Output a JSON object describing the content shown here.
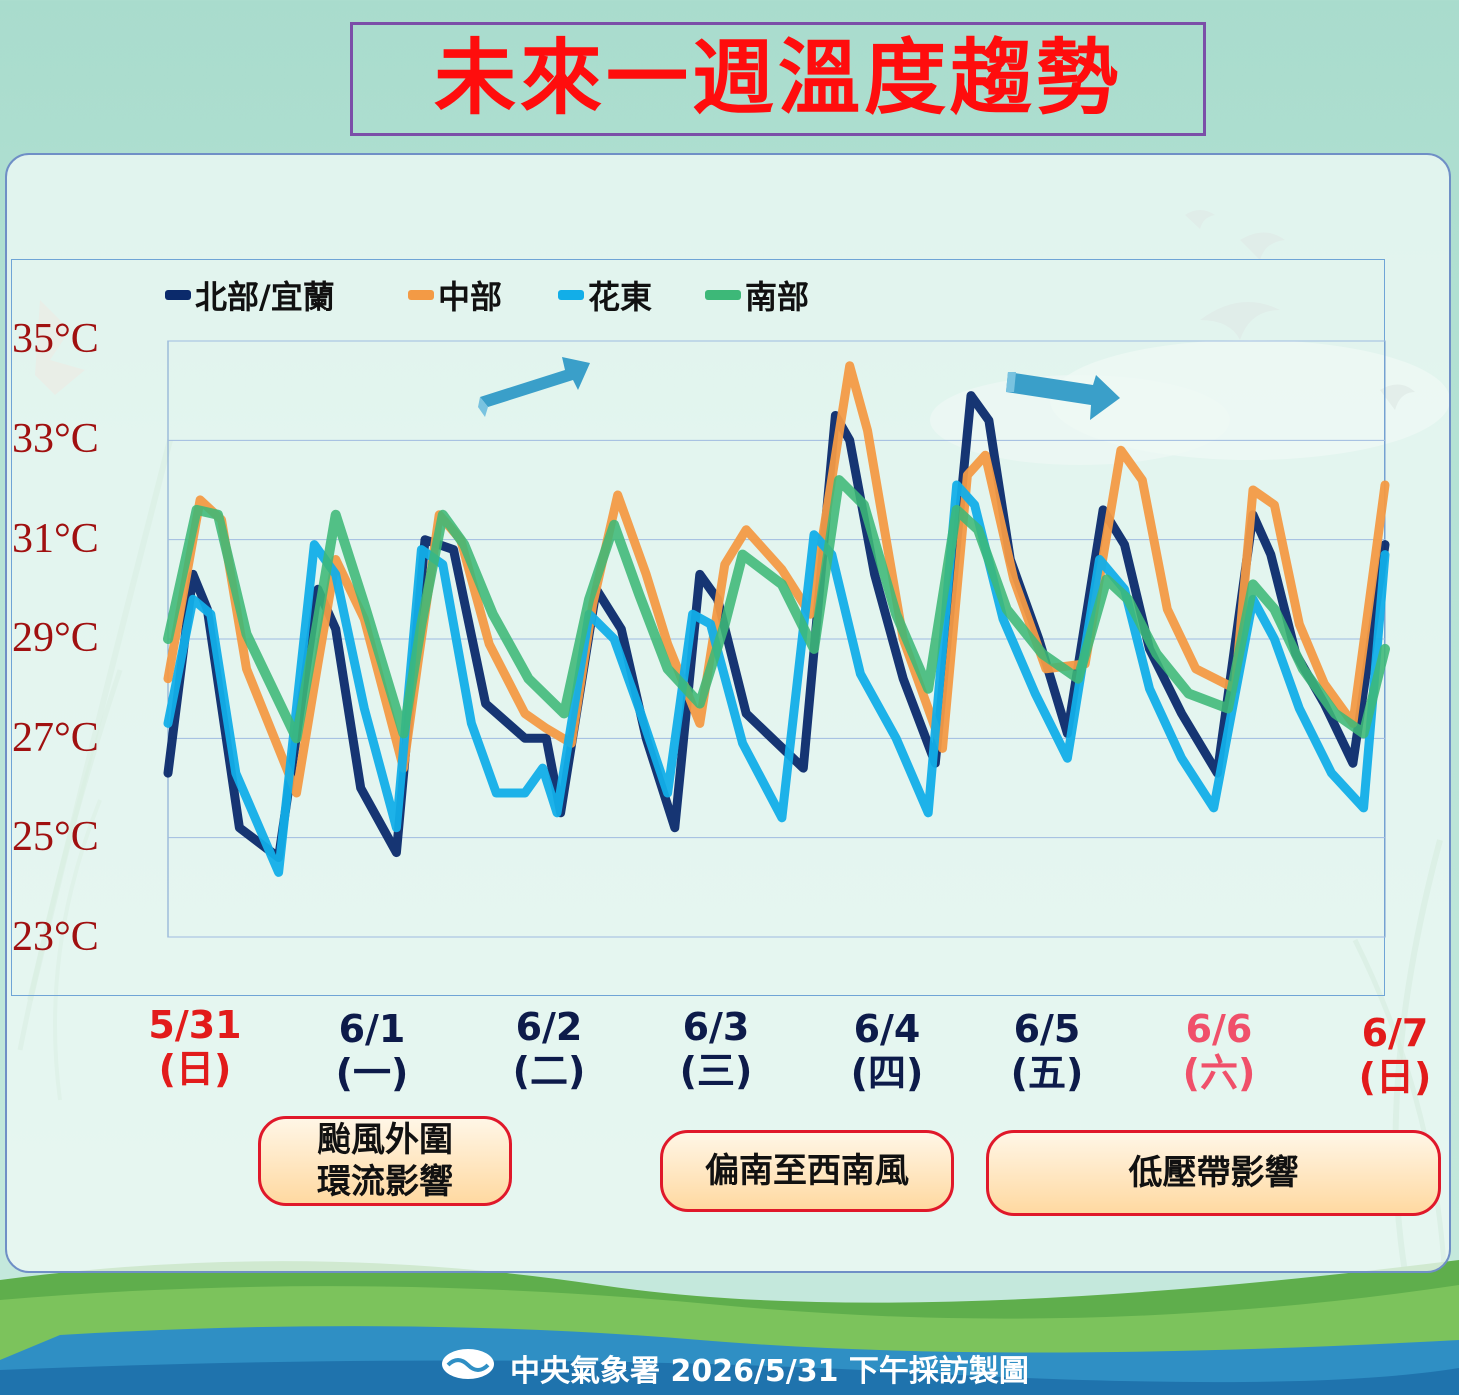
{
  "title": "未來一週溫度趨勢",
  "legend": [
    {
      "name": "北部/宜蘭",
      "color": "#0b2a6b"
    },
    {
      "name": "中部",
      "color": "#f39a45"
    },
    {
      "name": "花東",
      "color": "#12aee8"
    },
    {
      "name": "南部",
      "color": "#3db878"
    }
  ],
  "y_axis_labels": [
    "35°C",
    "33°C",
    "31°C",
    "29°C",
    "27°C",
    "25°C",
    "23°C"
  ],
  "dates": [
    {
      "date": "5/31",
      "weekday": "(日)",
      "color": "#e21b1b"
    },
    {
      "date": "6/1",
      "weekday": "(一)",
      "color": "#0d1b4a"
    },
    {
      "date": "6/2",
      "weekday": "(二)",
      "color": "#0d1b4a"
    },
    {
      "date": "6/3",
      "weekday": "(三)",
      "color": "#0d1b4a"
    },
    {
      "date": "6/4",
      "weekday": "(四)",
      "color": "#0d1b4a"
    },
    {
      "date": "6/5",
      "weekday": "(五)",
      "color": "#0d1b4a"
    },
    {
      "date": "6/6",
      "weekday": "(六)",
      "color": "#f0506a"
    },
    {
      "date": "6/7",
      "weekday": "(日)",
      "color": "#e21b1b"
    }
  ],
  "events": {
    "typhoon_line1": "颱風外圍",
    "typhoon_line2": "環流影響",
    "southwind": "偏南至西南風",
    "lowpressure": "低壓帶影響"
  },
  "footer": "中央氣象署  2026/5/31  下午採訪製圖",
  "chart_data": {
    "type": "line",
    "ylim": [
      23,
      35
    ],
    "grid": true,
    "legend_position": "top-left",
    "series": [
      {
        "name": "北部/宜蘭",
        "color": "#0b2a6b",
        "points": [
          [
            0,
            26.3
          ],
          [
            0.35,
            30.3
          ],
          [
            0.55,
            29.6
          ],
          [
            1.0,
            25.2
          ],
          [
            1.55,
            24.6
          ],
          [
            2.1,
            30.0
          ],
          [
            2.35,
            29.2
          ],
          [
            2.7,
            26.0
          ],
          [
            3.2,
            24.7
          ],
          [
            3.6,
            31.0
          ],
          [
            4.0,
            30.8
          ],
          [
            4.45,
            27.7
          ],
          [
            5.0,
            27.0
          ],
          [
            5.3,
            27.0
          ],
          [
            5.5,
            25.5
          ],
          [
            6.0,
            30.0
          ],
          [
            6.35,
            29.2
          ],
          [
            6.7,
            27.0
          ],
          [
            7.1,
            25.2
          ],
          [
            7.45,
            30.3
          ],
          [
            7.7,
            29.8
          ],
          [
            8.1,
            27.5
          ],
          [
            8.9,
            26.4
          ],
          [
            9.35,
            33.5
          ],
          [
            9.55,
            33.0
          ],
          [
            9.9,
            30.3
          ],
          [
            10.3,
            28.2
          ],
          [
            10.75,
            26.5
          ],
          [
            11.25,
            33.9
          ],
          [
            11.5,
            33.4
          ],
          [
            11.8,
            30.6
          ],
          [
            12.2,
            29.0
          ],
          [
            12.6,
            27.1
          ],
          [
            13.1,
            31.6
          ],
          [
            13.4,
            30.9
          ],
          [
            13.75,
            28.8
          ],
          [
            14.2,
            27.5
          ],
          [
            14.7,
            26.3
          ],
          [
            15.2,
            31.5
          ],
          [
            15.45,
            30.7
          ],
          [
            15.8,
            28.7
          ],
          [
            16.2,
            27.7
          ],
          [
            16.6,
            26.5
          ],
          [
            17.05,
            30.9
          ]
        ]
      },
      {
        "name": "中部",
        "color": "#f39a45",
        "points": [
          [
            0,
            28.2
          ],
          [
            0.45,
            31.8
          ],
          [
            0.75,
            31.4
          ],
          [
            1.1,
            28.4
          ],
          [
            1.8,
            25.9
          ],
          [
            2.1,
            28.5
          ],
          [
            2.35,
            30.6
          ],
          [
            2.75,
            29.4
          ],
          [
            3.3,
            26.4
          ],
          [
            3.5,
            28.5
          ],
          [
            3.8,
            31.5
          ],
          [
            4.1,
            31.0
          ],
          [
            4.5,
            28.9
          ],
          [
            5.0,
            27.5
          ],
          [
            5.3,
            27.2
          ],
          [
            5.65,
            26.9
          ],
          [
            5.95,
            29.7
          ],
          [
            6.3,
            31.9
          ],
          [
            6.7,
            30.3
          ],
          [
            7.0,
            28.9
          ],
          [
            7.45,
            27.3
          ],
          [
            7.8,
            30.5
          ],
          [
            8.1,
            31.2
          ],
          [
            8.6,
            30.4
          ],
          [
            9.0,
            29.5
          ],
          [
            9.55,
            34.5
          ],
          [
            9.8,
            33.2
          ],
          [
            10.3,
            29.0
          ],
          [
            10.85,
            26.8
          ],
          [
            11.2,
            32.3
          ],
          [
            11.45,
            32.7
          ],
          [
            11.85,
            30.2
          ],
          [
            12.3,
            28.4
          ],
          [
            12.85,
            28.5
          ],
          [
            13.35,
            32.8
          ],
          [
            13.65,
            32.2
          ],
          [
            14.0,
            29.6
          ],
          [
            14.4,
            28.4
          ],
          [
            14.95,
            28.0
          ],
          [
            15.2,
            32.0
          ],
          [
            15.5,
            31.7
          ],
          [
            15.85,
            29.3
          ],
          [
            16.2,
            28.1
          ],
          [
            16.6,
            27.3
          ],
          [
            17.05,
            32.1
          ]
        ]
      },
      {
        "name": "花東",
        "color": "#12aee8",
        "points": [
          [
            0,
            27.3
          ],
          [
            0.35,
            29.8
          ],
          [
            0.6,
            29.5
          ],
          [
            0.95,
            26.3
          ],
          [
            1.55,
            24.3
          ],
          [
            2.05,
            30.9
          ],
          [
            2.35,
            30.3
          ],
          [
            2.75,
            27.6
          ],
          [
            3.2,
            25.2
          ],
          [
            3.55,
            30.8
          ],
          [
            3.85,
            30.5
          ],
          [
            4.25,
            27.3
          ],
          [
            4.6,
            25.9
          ],
          [
            5.0,
            25.9
          ],
          [
            5.25,
            26.4
          ],
          [
            5.45,
            25.5
          ],
          [
            5.9,
            29.5
          ],
          [
            6.25,
            29.0
          ],
          [
            6.6,
            27.6
          ],
          [
            7.0,
            25.9
          ],
          [
            7.35,
            29.5
          ],
          [
            7.6,
            29.3
          ],
          [
            8.05,
            26.9
          ],
          [
            8.6,
            25.4
          ],
          [
            9.05,
            31.1
          ],
          [
            9.3,
            30.7
          ],
          [
            9.7,
            28.3
          ],
          [
            10.2,
            27.0
          ],
          [
            10.65,
            25.5
          ],
          [
            11.05,
            32.1
          ],
          [
            11.3,
            31.7
          ],
          [
            11.7,
            29.4
          ],
          [
            12.15,
            27.9
          ],
          [
            12.6,
            26.6
          ],
          [
            13.05,
            30.6
          ],
          [
            13.4,
            30.0
          ],
          [
            13.75,
            28.0
          ],
          [
            14.2,
            26.6
          ],
          [
            14.65,
            25.6
          ],
          [
            15.2,
            29.8
          ],
          [
            15.5,
            29.0
          ],
          [
            15.85,
            27.6
          ],
          [
            16.3,
            26.3
          ],
          [
            16.75,
            25.6
          ],
          [
            17.05,
            30.7
          ]
        ]
      },
      {
        "name": "南部",
        "color": "#3db878",
        "points": [
          [
            0,
            29.0
          ],
          [
            0.4,
            31.6
          ],
          [
            0.7,
            31.5
          ],
          [
            1.1,
            29.1
          ],
          [
            1.8,
            27.0
          ],
          [
            2.1,
            29.4
          ],
          [
            2.35,
            31.5
          ],
          [
            2.75,
            29.7
          ],
          [
            3.3,
            27.1
          ],
          [
            3.55,
            29.3
          ],
          [
            3.85,
            31.5
          ],
          [
            4.15,
            30.9
          ],
          [
            4.55,
            29.5
          ],
          [
            5.05,
            28.2
          ],
          [
            5.55,
            27.5
          ],
          [
            5.9,
            29.8
          ],
          [
            6.25,
            31.3
          ],
          [
            6.6,
            29.9
          ],
          [
            7.0,
            28.4
          ],
          [
            7.45,
            27.7
          ],
          [
            7.8,
            29.3
          ],
          [
            8.05,
            30.7
          ],
          [
            8.6,
            30.1
          ],
          [
            9.05,
            28.8
          ],
          [
            9.4,
            32.2
          ],
          [
            9.75,
            31.7
          ],
          [
            10.2,
            29.5
          ],
          [
            10.65,
            28.0
          ],
          [
            11.05,
            31.6
          ],
          [
            11.35,
            31.2
          ],
          [
            11.75,
            29.6
          ],
          [
            12.25,
            28.7
          ],
          [
            12.75,
            28.2
          ],
          [
            13.15,
            30.2
          ],
          [
            13.45,
            29.8
          ],
          [
            13.85,
            28.7
          ],
          [
            14.3,
            27.9
          ],
          [
            14.85,
            27.6
          ],
          [
            15.2,
            30.1
          ],
          [
            15.5,
            29.6
          ],
          [
            15.9,
            28.4
          ],
          [
            16.35,
            27.5
          ],
          [
            16.75,
            27.1
          ],
          [
            17.05,
            28.8
          ]
        ]
      }
    ]
  }
}
